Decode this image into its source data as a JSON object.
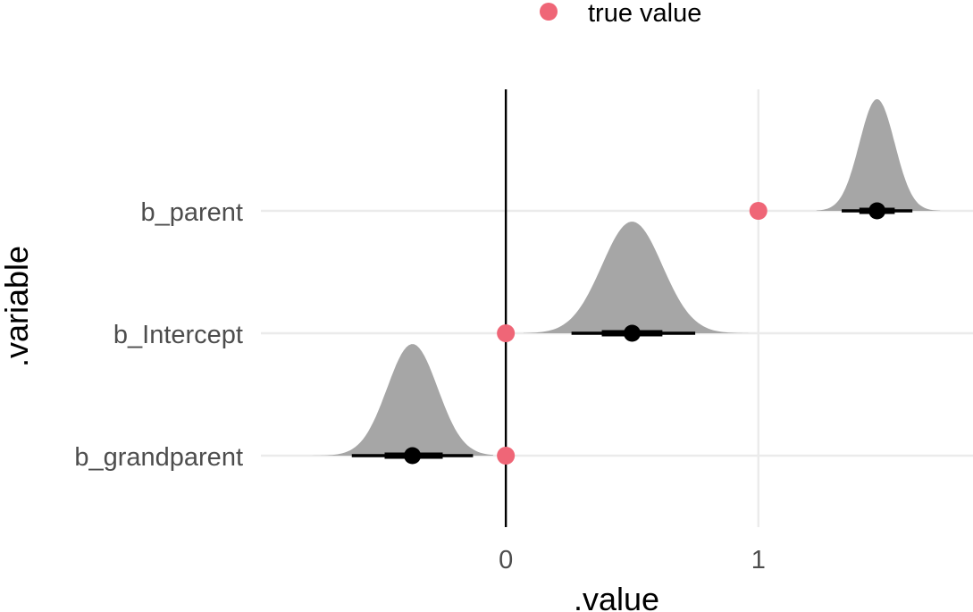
{
  "chart_data": {
    "type": "halfeye",
    "xlabel": ".value",
    "ylabel": ".variable",
    "xlim": [
      -0.97,
      1.85
    ],
    "x_ticks": [
      0,
      1
    ],
    "x_tick_labels": [
      "0",
      "1"
    ],
    "grid": true,
    "reference_line_x": 0,
    "legend": {
      "position": "top",
      "entries": [
        {
          "label": "true value",
          "color": "#ef6677"
        }
      ]
    },
    "colors": {
      "density": "#a6a6a6",
      "interval": "#000000",
      "true_value": "#ef6677",
      "grid": "#ebebeb"
    },
    "categories": [
      "b_grandparent",
      "b_Intercept",
      "b_parent"
    ],
    "distributions": [
      {
        "variable": "b_grandparent",
        "median": -0.37,
        "sd": 0.1,
        "interval_66": [
          -0.48,
          -0.25
        ],
        "interval_95": [
          -0.61,
          -0.13
        ],
        "range": [
          -0.96,
          -0.05
        ],
        "true_value": 0
      },
      {
        "variable": "b_Intercept",
        "median": 0.5,
        "sd": 0.12,
        "interval_66": [
          0.38,
          0.62
        ],
        "interval_95": [
          0.26,
          0.75
        ],
        "range": [
          0.07,
          0.96
        ],
        "true_value": 0
      },
      {
        "variable": "b_parent",
        "median": 1.47,
        "sd": 0.07,
        "interval_66": [
          1.4,
          1.54
        ],
        "interval_95": [
          1.33,
          1.61
        ],
        "range": [
          1.23,
          1.72
        ],
        "true_value": 1
      }
    ]
  }
}
